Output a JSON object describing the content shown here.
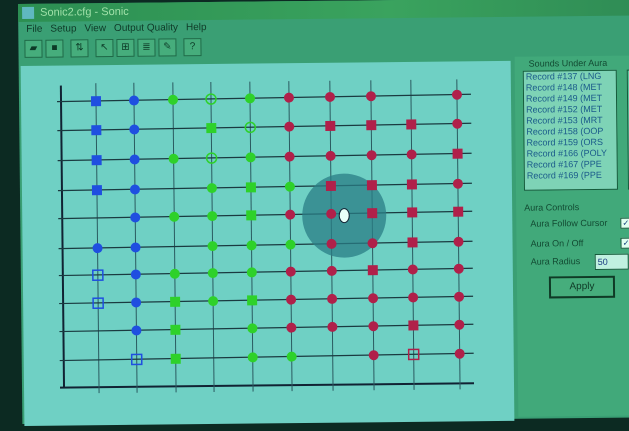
{
  "window": {
    "title": "Sonic2.cfg - Sonic"
  },
  "menu": [
    "File",
    "Setup",
    "View",
    "Output Quality",
    "Help"
  ],
  "toolbar": [
    "open-icon",
    "save-icon",
    "sort-icon",
    "select-icon",
    "grid-icon",
    "list-icon",
    "edit-icon",
    "help-icon"
  ],
  "colors": {
    "blue": "#1f4fe0",
    "green": "#2ed12a",
    "red": "#b0204a",
    "aura": "#2a7d86"
  },
  "plot": {
    "legend_codes": "b=blue g=green r=red; C=circle S=square H=hollow-square O=hollow-circle",
    "rows": [
      [
        "bS",
        "bC",
        "gC",
        "gO",
        "gC",
        "rC",
        "rC",
        "rC",
        "",
        "rC"
      ],
      [
        "bS",
        "bC",
        "",
        "gS",
        "gO",
        "rC",
        "rS",
        "rS",
        "rS",
        "rC"
      ],
      [
        "bS",
        "bC",
        "gC",
        "gO",
        "gC",
        "rC",
        "rC",
        "rC",
        "rC",
        "rS"
      ],
      [
        "bS",
        "bC",
        "",
        "gC",
        "gS",
        "gC",
        "rS",
        "rS",
        "rS",
        "rC"
      ],
      [
        "",
        "bC",
        "gC",
        "gC",
        "gS",
        "rC",
        "rC",
        "rS",
        "rS",
        "rS"
      ],
      [
        "bC",
        "bC",
        "",
        "gC",
        "gC",
        "gC",
        "rC",
        "rC",
        "rS",
        "rC"
      ],
      [
        "bH",
        "bC",
        "gC",
        "gC",
        "gC",
        "rC",
        "rC",
        "rS",
        "rC",
        "rC"
      ],
      [
        "bH",
        "bC",
        "gS",
        "gC",
        "gS",
        "rC",
        "rC",
        "rC",
        "rC",
        "rC"
      ],
      [
        "",
        "bC",
        "gS",
        "",
        "gC",
        "rC",
        "rC",
        "rC",
        "rS",
        "rC"
      ],
      [
        "",
        "bH",
        "gS",
        "",
        "gC",
        "gC",
        "",
        "rC",
        "rH",
        "rC"
      ]
    ]
  },
  "side": {
    "sounds_title": "Sounds Under Aura",
    "records": [
      "Record #137 (LNG",
      "Record #148 (MET",
      "Record #149 (MET",
      "Record #152 (MET",
      "Record #153 (MRT",
      "Record #158 (OOP",
      "Record #159 (ORS",
      "Record #166 (POLY",
      "Record #167 (PPE",
      "Record #169 (PPE"
    ],
    "controls_title": "Aura Controls",
    "follow_label": "Aura Follow Cursor",
    "follow_checked": true,
    "onoff_label": "Aura On / Off",
    "onoff_checked": true,
    "radius_label": "Aura Radius",
    "radius_value": "50",
    "apply_label": "Apply"
  }
}
